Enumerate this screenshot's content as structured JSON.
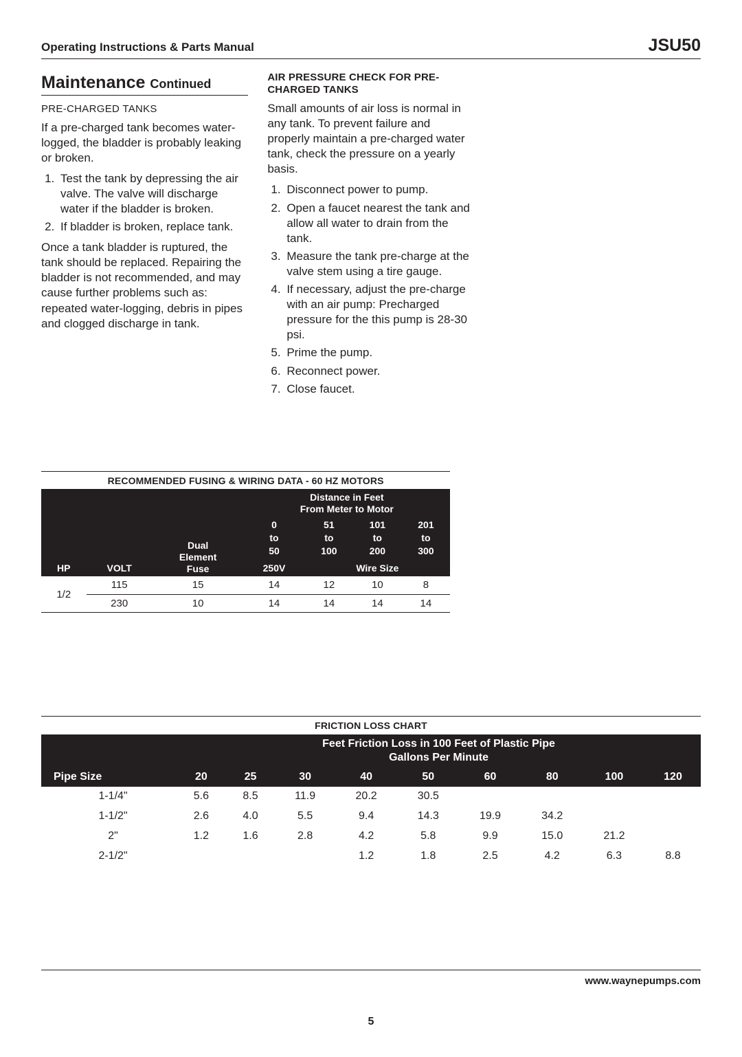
{
  "header": {
    "left": "Operating Instructions & Parts Manual",
    "right": "JSU50"
  },
  "col1": {
    "title_main": "Maintenance",
    "title_sub": "Continued",
    "subhead": "PRE-CHARGED TANKS",
    "intro": "If a pre-charged tank becomes water-logged, the bladder is probably leaking or broken.",
    "steps": [
      "Test the tank by depressing the air valve. The valve will discharge water if the bladder is broken.",
      "If bladder is broken, replace tank."
    ],
    "outro": "Once a tank bladder is ruptured, the tank should be replaced. Repairing the bladder is not recommended, and may cause further problems such as: repeated water-logging, debris in pipes and clogged discharge in tank."
  },
  "col2": {
    "subhead": "AIR PRESSURE CHECK FOR PRE-CHARGED TANKS",
    "intro": "Small amounts of air loss is normal in any tank. To prevent failure and properly maintain a pre-charged water tank, check the pressure on a yearly basis.",
    "steps": [
      "Disconnect power to pump.",
      "Open a faucet nearest the tank and allow all water to drain from the tank.",
      "Measure the tank pre-charge at the valve stem using a tire gauge.",
      "If necessary, adjust the pre-charge with an air pump: Precharged pressure for the this pump is 28-30 psi.",
      "Prime the pump.",
      "Reconnect power.",
      "Close faucet."
    ]
  },
  "fusing": {
    "title": "RECOMMENDED FUSING & WIRING DATA - 60 HZ MOTORS",
    "dist_label1": "Distance in Feet",
    "dist_label2": "From Meter to Motor",
    "ranges": [
      {
        "a": "0",
        "b": "to",
        "c": "50"
      },
      {
        "a": "51",
        "b": "to",
        "c": "100"
      },
      {
        "a": "101",
        "b": "to",
        "c": "200"
      },
      {
        "a": "201",
        "b": "to",
        "c": "300"
      }
    ],
    "dual_l1": "Dual",
    "dual_l2": "Element",
    "dual_l3": "Fuse",
    "dual_l4": "250V",
    "hp_label": "HP",
    "volt_label": "VOLT",
    "wire_label": "Wire Size",
    "rows": [
      {
        "hp": "1/2",
        "volt": "115",
        "fuse": "15",
        "w": [
          "14",
          "12",
          "10",
          "8"
        ]
      },
      {
        "hp": "",
        "volt": "230",
        "fuse": "10",
        "w": [
          "14",
          "14",
          "14",
          "14"
        ]
      }
    ]
  },
  "friction": {
    "title": "FRICTION LOSS CHART",
    "sub1": "Feet Friction Loss in 100 Feet of Plastic Pipe",
    "sub2": "Gallons Per Minute",
    "pipe_label": "Pipe Size",
    "gpm": [
      "20",
      "25",
      "30",
      "40",
      "50",
      "60",
      "80",
      "100",
      "120"
    ],
    "rows": [
      {
        "size": "1-1/4\"",
        "v": [
          "5.6",
          "8.5",
          "11.9",
          "20.2",
          "30.5",
          "",
          "",
          "",
          ""
        ]
      },
      {
        "size": "1-1/2\"",
        "v": [
          "2.6",
          "4.0",
          "5.5",
          "9.4",
          "14.3",
          "19.9",
          "34.2",
          "",
          ""
        ]
      },
      {
        "size": "2\"",
        "v": [
          "1.2",
          "1.6",
          "2.8",
          "4.2",
          "5.8",
          "9.9",
          "15.0",
          "21.2",
          ""
        ]
      },
      {
        "size": "2-1/2\"",
        "v": [
          "",
          "",
          "",
          "1.2",
          "1.8",
          "2.5",
          "4.2",
          "6.3",
          "8.8"
        ]
      }
    ]
  },
  "footer": {
    "url": "www.waynepumps.com",
    "page": "5"
  }
}
